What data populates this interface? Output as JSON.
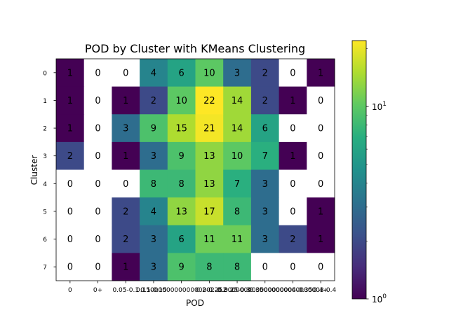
{
  "chart_data": {
    "type": "heatmap",
    "title": "POD by Cluster with KMeans Clustering",
    "xlabel": "POD",
    "ylabel": "Cluster",
    "x_categories": [
      "0",
      "0+",
      "0.05-0.1",
      "0.1-0.15",
      "0.15-0.2",
      "0.2-0.25",
      "0.25-0.3",
      "0.3-0.35",
      "0.35-0.4",
      "0.4+"
    ],
    "x_tick_labels": [
      "0",
      "0+",
      "0.05-0.1",
      "0.1-0.15",
      "0.150000000000000002-0.2",
      "0.2-0.25",
      "0.25-0.3",
      "0.300000000000000004-0.35",
      "0.35000000000000003-0.4",
      "0.4+"
    ],
    "y_categories": [
      "0",
      "1",
      "2",
      "3",
      "4",
      "5",
      "6",
      "7"
    ],
    "values": [
      [
        1,
        0,
        0,
        4,
        6,
        10,
        3,
        2,
        0,
        1
      ],
      [
        1,
        0,
        1,
        2,
        10,
        22,
        14,
        2,
        1,
        0
      ],
      [
        1,
        0,
        3,
        9,
        15,
        21,
        14,
        6,
        0,
        0
      ],
      [
        2,
        0,
        1,
        3,
        9,
        13,
        10,
        7,
        1,
        0
      ],
      [
        0,
        0,
        0,
        8,
        8,
        13,
        7,
        3,
        0,
        0
      ],
      [
        0,
        0,
        2,
        4,
        13,
        17,
        8,
        3,
        0,
        1
      ],
      [
        0,
        0,
        2,
        3,
        6,
        11,
        11,
        3,
        2,
        1
      ],
      [
        0,
        0,
        1,
        3,
        9,
        8,
        8,
        0,
        0,
        0
      ]
    ],
    "zero_cells": "blank",
    "colormap": "viridis",
    "color_scale": "log",
    "color_range": [
      1,
      22
    ],
    "colorbar_ticks": [
      {
        "value": 1,
        "base": "10",
        "exp": "0"
      },
      {
        "value": 10,
        "base": "10",
        "exp": "1"
      }
    ],
    "colors": {
      "background": "#ffffff",
      "blank_cell": "#ffffff",
      "text": "#000000"
    }
  }
}
